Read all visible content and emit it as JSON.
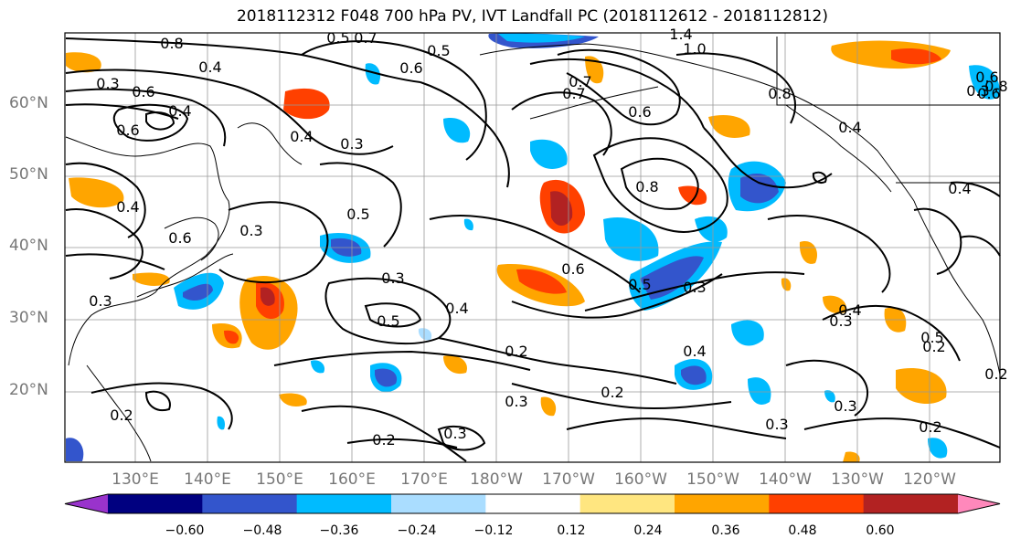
{
  "title": "2018112312 F048 700 hPa PV, IVT Landfall PC (2018112612 - 2018112812)",
  "lat_labels": [
    "60°N",
    "50°N",
    "40°N",
    "30°N",
    "20°N"
  ],
  "lon_labels": [
    "130°E",
    "140°E",
    "150°E",
    "160°E",
    "170°E",
    "180°W",
    "170°W",
    "160°W",
    "150°W",
    "140°W",
    "130°W",
    "120°W"
  ],
  "colorbar": {
    "ticks": [
      "−0.60",
      "−0.48",
      "−0.36",
      "−0.24",
      "−0.12",
      "0.12",
      "0.24",
      "0.36",
      "0.48",
      "0.60"
    ],
    "colors": [
      "#9933cc",
      "#000080",
      "#3355cc",
      "#00bbff",
      "#aaddff",
      "#ffffff",
      "#ffe680",
      "#ffa500",
      "#ff4000",
      "#b22222",
      "#ff88bb"
    ]
  },
  "contour_labels": [
    "0.8",
    "0.4",
    "0.3",
    "0.5",
    "0.7",
    "0.6",
    "0.4",
    "0.5",
    "0.6",
    "1.4",
    "1.0",
    "0.7",
    "0.6",
    "0.6",
    "0.4",
    "0.3",
    "0.8",
    "0.4",
    "0.7",
    "0.8",
    "0.4",
    "0.6",
    "0.3",
    "0.5",
    "0.6",
    "0.5",
    "0.3",
    "0.5",
    "0.4",
    "0.3",
    "0.3",
    "0.4",
    "0.3",
    "0.5",
    "0.2",
    "0.4",
    "0.3",
    "0.3",
    "0.2",
    "0.2",
    "0.2",
    "0.3",
    "0.2",
    "0.3",
    "0.2",
    "0.3",
    "0.4",
    "0.2",
    "0.6",
    "0.8",
    "0.6"
  ]
}
